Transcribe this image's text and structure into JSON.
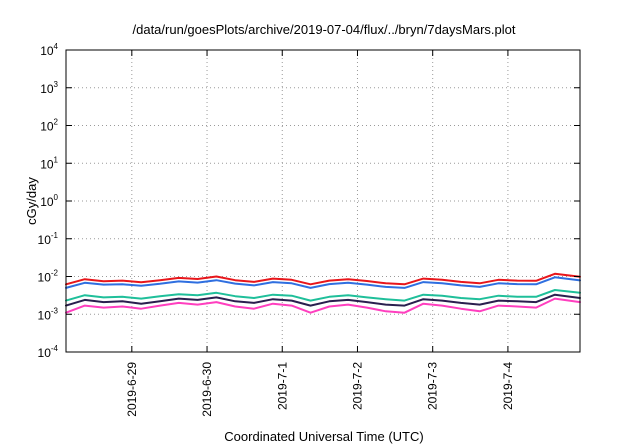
{
  "chart_data": {
    "type": "line",
    "title": "/data/run/goesPlots/archive/2019-07-04/flux/../bryn/7daysMars.plot",
    "xlabel": "Coordinated Universal Time (UTC)",
    "ylabel": "cGy/day",
    "y_scale": "log",
    "ylim": [
      "1e-4",
      "1e4"
    ],
    "xlim": [
      "2019-06-28T03:00",
      "2019-07-04T23:00"
    ],
    "grid": true,
    "legend": "none",
    "y_ticks": [
      {
        "base": "10",
        "exp": "-4",
        "value": "1e-4"
      },
      {
        "base": "10",
        "exp": "-3",
        "value": "1e-3"
      },
      {
        "base": "10",
        "exp": "-2",
        "value": "1e-2"
      },
      {
        "base": "10",
        "exp": "-1",
        "value": "1e-1"
      },
      {
        "base": "10",
        "exp": "0",
        "value": "1e0"
      },
      {
        "base": "10",
        "exp": "1",
        "value": "1e1"
      },
      {
        "base": "10",
        "exp": "2",
        "value": "1e2"
      },
      {
        "base": "10",
        "exp": "3",
        "value": "1e3"
      },
      {
        "base": "10",
        "exp": "4",
        "value": "1e4"
      }
    ],
    "x_ticks": [
      {
        "label": "2019-6-29",
        "date": "2019-06-29T00:00"
      },
      {
        "label": "2019-6-30",
        "date": "2019-06-30T00:00"
      },
      {
        "label": "2019-7-1",
        "date": "2019-07-01T00:00"
      },
      {
        "label": "2019-7-2",
        "date": "2019-07-02T00:00"
      },
      {
        "label": "2019-7-3",
        "date": "2019-07-03T00:00"
      },
      {
        "label": "2019-7-4",
        "date": "2019-07-04T00:00"
      }
    ],
    "x": [
      "2019-06-28T03:00",
      "2019-06-28T09:00",
      "2019-06-28T15:00",
      "2019-06-28T21:00",
      "2019-06-29T03:00",
      "2019-06-29T09:00",
      "2019-06-29T15:00",
      "2019-06-29T21:00",
      "2019-06-30T03:00",
      "2019-06-30T09:00",
      "2019-06-30T15:00",
      "2019-06-30T21:00",
      "2019-07-01T03:00",
      "2019-07-01T09:00",
      "2019-07-01T15:00",
      "2019-07-01T21:00",
      "2019-07-02T03:00",
      "2019-07-02T09:00",
      "2019-07-02T15:00",
      "2019-07-02T21:00",
      "2019-07-03T03:00",
      "2019-07-03T09:00",
      "2019-07-03T15:00",
      "2019-07-03T21:00",
      "2019-07-04T03:00",
      "2019-07-04T09:00",
      "2019-07-04T15:00",
      "2019-07-04T23:00"
    ],
    "series": [
      {
        "color": "#e8161b",
        "values": [
          0.0062,
          0.0085,
          0.0075,
          0.0078,
          0.007,
          0.008,
          0.0092,
          0.0086,
          0.01,
          0.008,
          0.0072,
          0.0088,
          0.0082,
          0.0062,
          0.0078,
          0.0085,
          0.0076,
          0.0066,
          0.0062,
          0.0088,
          0.0082,
          0.0072,
          0.0066,
          0.0082,
          0.0078,
          0.0077,
          0.0118,
          0.0098
        ]
      },
      {
        "color": "#2f6fe0",
        "values": [
          0.005,
          0.0068,
          0.0061,
          0.0062,
          0.0057,
          0.0064,
          0.0074,
          0.0069,
          0.008,
          0.0065,
          0.0058,
          0.0071,
          0.0066,
          0.005,
          0.0063,
          0.0068,
          0.0061,
          0.0053,
          0.005,
          0.0071,
          0.0066,
          0.0058,
          0.0053,
          0.0066,
          0.0063,
          0.0062,
          0.0095,
          0.0079
        ]
      },
      {
        "color": "#1fbf9a",
        "values": [
          0.0023,
          0.0032,
          0.0028,
          0.0029,
          0.0026,
          0.003,
          0.0034,
          0.0032,
          0.0037,
          0.003,
          0.0027,
          0.0033,
          0.0031,
          0.0023,
          0.0029,
          0.0032,
          0.0028,
          0.0025,
          0.0023,
          0.0033,
          0.0031,
          0.0027,
          0.0025,
          0.0031,
          0.0029,
          0.0029,
          0.0044,
          0.0037
        ]
      },
      {
        "color": "#2a1f4e",
        "values": [
          0.0017,
          0.0024,
          0.0021,
          0.0022,
          0.0019,
          0.0022,
          0.0026,
          0.0024,
          0.0028,
          0.0022,
          0.002,
          0.0025,
          0.0023,
          0.0017,
          0.0022,
          0.0024,
          0.0021,
          0.0018,
          0.0017,
          0.0025,
          0.0023,
          0.002,
          0.0018,
          0.0023,
          0.0022,
          0.0021,
          0.0033,
          0.0027
        ]
      },
      {
        "color": "#ff3fbf",
        "values": [
          0.0011,
          0.0017,
          0.0015,
          0.0016,
          0.0014,
          0.0017,
          0.002,
          0.0018,
          0.0021,
          0.0016,
          0.0014,
          0.0019,
          0.0017,
          0.0011,
          0.0016,
          0.0018,
          0.0015,
          0.0012,
          0.0011,
          0.0019,
          0.0017,
          0.0014,
          0.0012,
          0.0017,
          0.0016,
          0.0015,
          0.0026,
          0.0021
        ]
      }
    ]
  }
}
